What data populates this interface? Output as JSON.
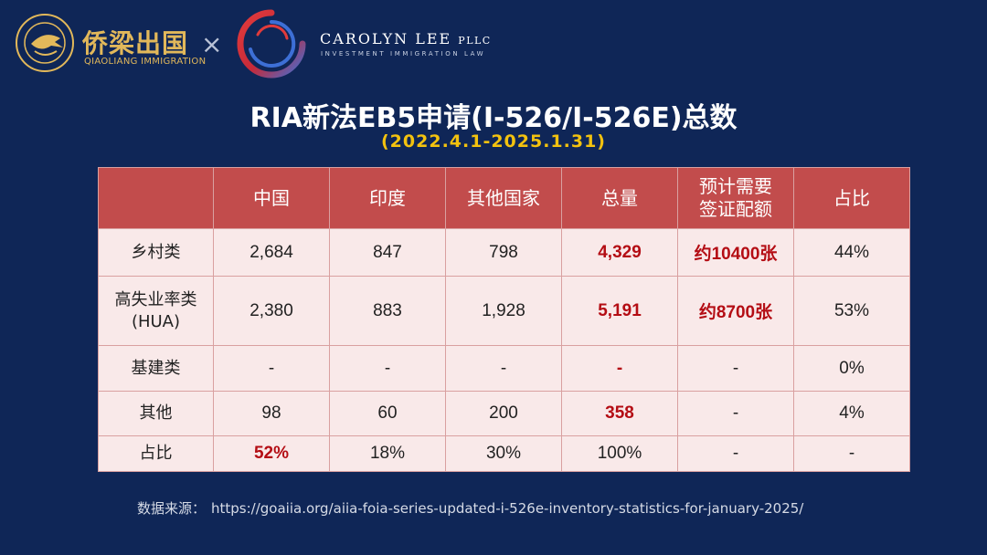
{
  "brand": {
    "qiaoliang_name": "侨梁出国",
    "qiaoliang_sub": "QIAOLIANG IMMIGRATION",
    "qiaoliang_ring_text": "QIAOLIANG IMMIGRATION",
    "times_symbol": "×",
    "carolyn_name": "CAROLYN LEE",
    "carolyn_pllc": "PLLC",
    "carolyn_sub": "INVESTMENT IMMIGRATION LAW"
  },
  "title": "RIA新法EB5申请(I-526/I-526E)总数",
  "subtitle": "(2022.4.1-2025.1.31)",
  "table": {
    "headers": [
      "",
      "中国",
      "印度",
      "其他国家",
      "总量",
      "预计需要签证配额",
      "占比"
    ],
    "header_line1": "预计需要",
    "header_line2": "签证配额",
    "rows": [
      {
        "label": "乡村类",
        "cells": [
          "2,684",
          "847",
          "798",
          "4,329",
          "约10400张",
          "44%"
        ]
      },
      {
        "label_line1": "高失业率类",
        "label_line2": "(HUA)",
        "cells": [
          "2,380",
          "883",
          "1,928",
          "5,191",
          "约8700张",
          "53%"
        ]
      },
      {
        "label": "基建类",
        "cells": [
          "-",
          "-",
          "-",
          "-",
          "-",
          "0%"
        ]
      },
      {
        "label": "其他",
        "cells": [
          "98",
          "60",
          "200",
          "358",
          "-",
          "4%"
        ]
      },
      {
        "label": "占比",
        "cells": [
          "52%",
          "18%",
          "30%",
          "100%",
          "-",
          "-"
        ]
      }
    ]
  },
  "source": {
    "label": "数据来源：",
    "url": "https://goaiia.org/aiia-foia-series-updated-i-526e-inventory-statistics-for-january-2025/"
  },
  "colors": {
    "background": "#0f2657",
    "header_red": "#c24c4c",
    "cell_bg": "#f9e9e9",
    "highlight_red": "#b40d14",
    "subtitle_gold": "#f3c20f",
    "logo_gold": "#e2b85a"
  }
}
